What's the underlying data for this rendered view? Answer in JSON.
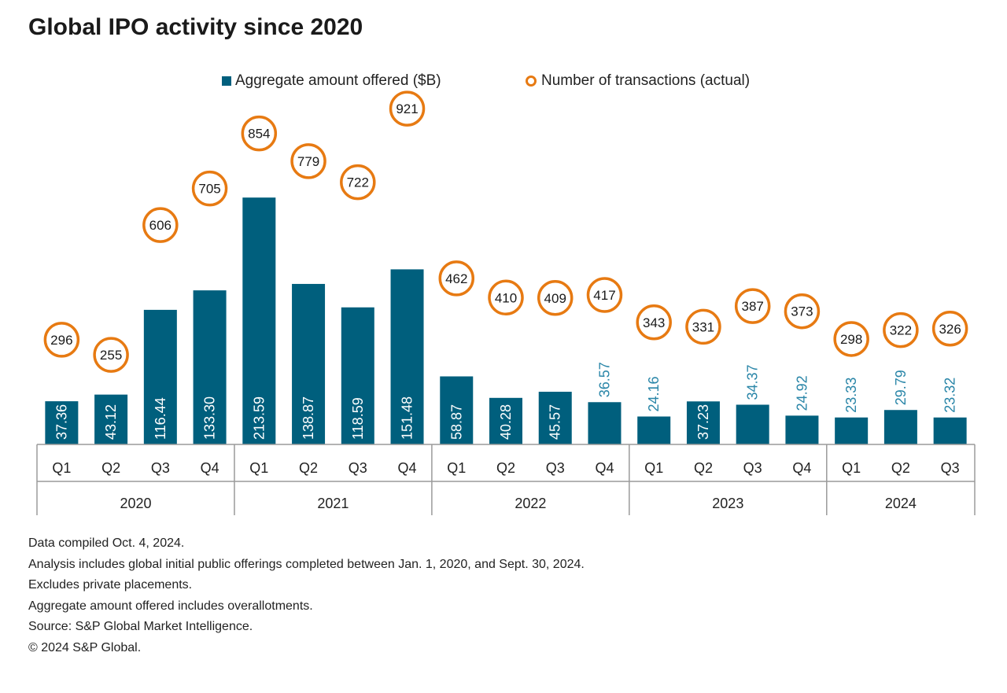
{
  "title": "Global IPO activity since 2020",
  "legend": {
    "bar_label": "Aggregate amount offered ($B)",
    "circle_label": "Number of transactions (actual)"
  },
  "colors": {
    "bar": "#005f7d",
    "circle": "#e77a12",
    "label_inside": "#ffffff",
    "label_outside": "#2a86a8"
  },
  "chart_data": {
    "type": "bar",
    "title": "Global IPO activity since 2020",
    "categories": [
      "Q1",
      "Q2",
      "Q3",
      "Q4",
      "Q1",
      "Q2",
      "Q3",
      "Q4",
      "Q1",
      "Q2",
      "Q3",
      "Q4",
      "Q1",
      "Q2",
      "Q3",
      "Q4",
      "Q1",
      "Q2",
      "Q3"
    ],
    "years": [
      {
        "label": "2020",
        "count": 4
      },
      {
        "label": "2021",
        "count": 4
      },
      {
        "label": "2022",
        "count": 4
      },
      {
        "label": "2023",
        "count": 4
      },
      {
        "label": "2024",
        "count": 3
      }
    ],
    "series": [
      {
        "name": "Aggregate amount offered ($B)",
        "type": "bar",
        "values": [
          37.36,
          43.12,
          116.44,
          133.3,
          213.59,
          138.87,
          118.59,
          151.48,
          58.87,
          40.28,
          45.57,
          36.57,
          24.16,
          37.23,
          34.37,
          24.92,
          23.33,
          29.79,
          23.32
        ],
        "labels": [
          "37.36",
          "43.12",
          "116.44",
          "133.30",
          "213.59",
          "138.87",
          "118.59",
          "151.48",
          "58.87",
          "40.28",
          "45.57",
          "36.57",
          "24.16",
          "37.23",
          "34.37",
          "24.92",
          "23.33",
          "29.79",
          "23.32"
        ]
      },
      {
        "name": "Number of transactions (actual)",
        "type": "circle-marker",
        "values": [
          296,
          255,
          606,
          705,
          854,
          779,
          722,
          921,
          462,
          410,
          409,
          417,
          343,
          331,
          387,
          373,
          298,
          322,
          326
        ]
      }
    ],
    "label_outside": [
      false,
      false,
      false,
      false,
      false,
      false,
      false,
      false,
      false,
      false,
      false,
      true,
      true,
      false,
      true,
      true,
      true,
      true,
      true
    ],
    "ylim": [
      0,
      245
    ],
    "grid": false
  },
  "notes": [
    "Data compiled Oct. 4, 2024.",
    "Analysis includes global initial public offerings completed between Jan. 1, 2020, and Sept. 30, 2024.",
    "Excludes private placements.",
    "Aggregate amount offered includes overallotments.",
    "Source: S&P Global Market Intelligence.",
    "© 2024 S&P Global."
  ]
}
